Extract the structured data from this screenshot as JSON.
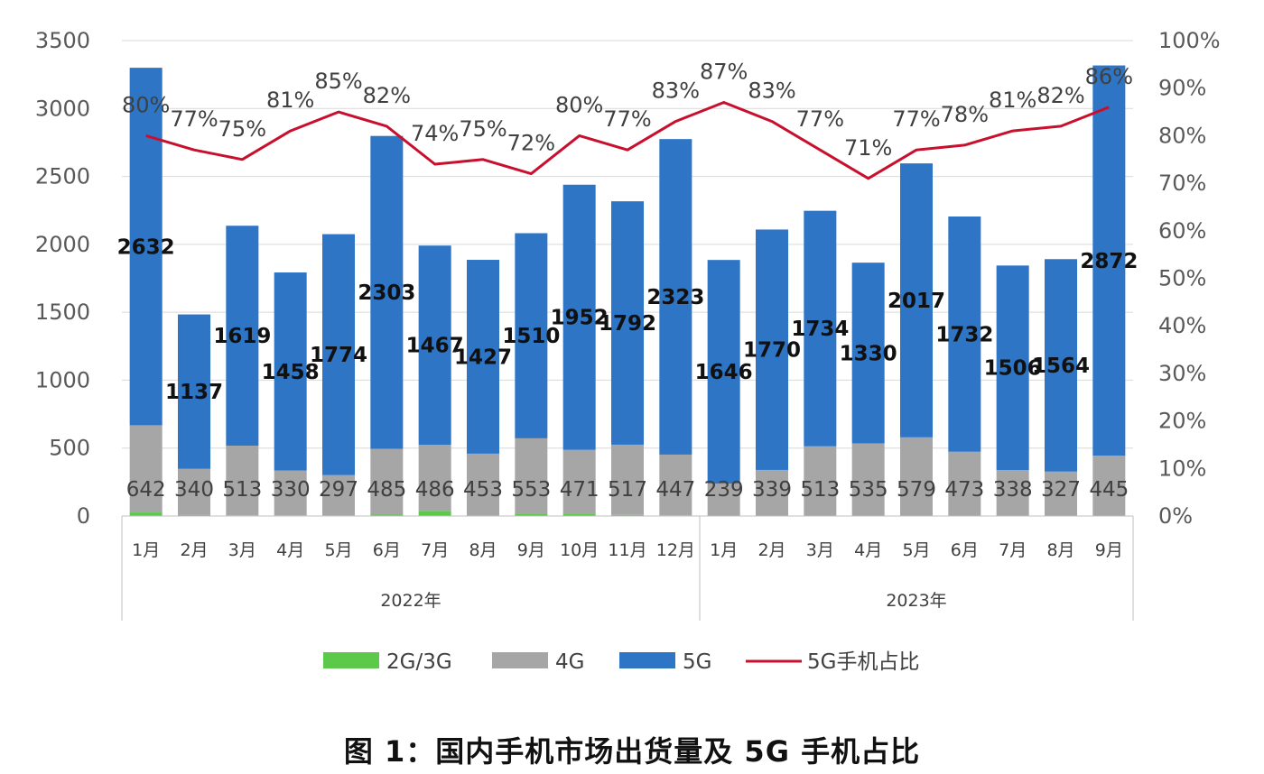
{
  "caption": "图 1：国内手机市场出货量及 5G 手机占比",
  "colors": {
    "g2g3": "#5cc94a",
    "g4": "#a6a6a6",
    "g5": "#2e75c6",
    "ratio_line": "#c8102e",
    "grid": "#d9d9d9",
    "axis": "#bfbfbf"
  },
  "chart_data": {
    "type": "bar",
    "stacked": true,
    "title": "",
    "groups": [
      {
        "label": "2022年",
        "months": [
          "1月",
          "2月",
          "3月",
          "4月",
          "5月",
          "6月",
          "7月",
          "8月",
          "9月",
          "10月",
          "11月",
          "12月"
        ]
      },
      {
        "label": "2023年",
        "months": [
          "1月",
          "2月",
          "3月",
          "4月",
          "5月",
          "6月",
          "7月",
          "8月",
          "9月"
        ]
      }
    ],
    "y_left": {
      "ylim": [
        0,
        3500
      ],
      "ticks": [
        "0",
        "500",
        "1000",
        "1500",
        "2000",
        "2500",
        "3000",
        "3500"
      ]
    },
    "y_right": {
      "ylim": [
        0,
        100
      ],
      "ticks": [
        "0%",
        "10%",
        "20%",
        "30%",
        "40%",
        "50%",
        "60%",
        "70%",
        "80%",
        "90%",
        "100%"
      ]
    },
    "series": [
      {
        "name": "2G/3G",
        "type": "bar",
        "values": [
          26,
          7,
          5,
          5,
          4,
          10,
          38,
          6,
          19,
          16,
          8,
          5,
          0,
          0,
          0,
          0,
          0,
          0,
          0,
          0,
          0
        ]
      },
      {
        "name": "4G",
        "type": "bar",
        "values": [
          642,
          340,
          513,
          330,
          297,
          485,
          486,
          453,
          553,
          471,
          517,
          447,
          239,
          339,
          513,
          535,
          579,
          473,
          338,
          327,
          445
        ]
      },
      {
        "name": "5G",
        "type": "bar",
        "values": [
          2632,
          1137,
          1619,
          1458,
          1774,
          2303,
          1467,
          1427,
          1510,
          1952,
          1792,
          2323,
          1646,
          1770,
          1734,
          1330,
          2017,
          1732,
          1506,
          1564,
          2872
        ]
      },
      {
        "name": "5G手机占比",
        "type": "line",
        "axis": "right",
        "values": [
          80,
          77,
          75,
          81,
          85,
          82,
          74,
          75,
          72,
          80,
          77,
          83,
          87,
          83,
          77,
          71,
          77,
          78,
          81,
          82,
          86
        ],
        "labels": [
          "80%",
          "77%",
          "75%",
          "81%",
          "85%",
          "82%",
          "74%",
          "75%",
          "72%",
          "80%",
          "77%",
          "83%",
          "87%",
          "83%",
          "77%",
          "71%",
          "77%",
          "78%",
          "81%",
          "82%",
          "86%"
        ]
      }
    ],
    "legend": {
      "position": "bottom",
      "entries": [
        "2G/3G",
        "4G",
        "5G",
        "5G手机占比"
      ]
    },
    "grid": true
  }
}
